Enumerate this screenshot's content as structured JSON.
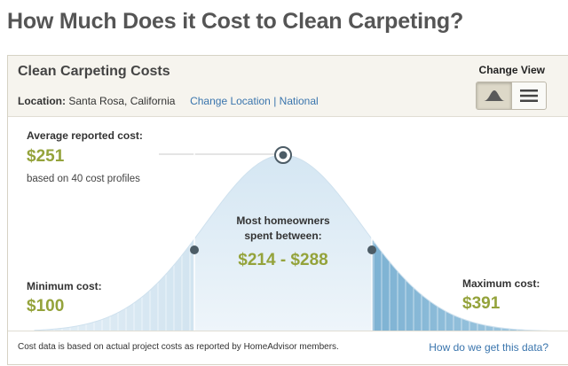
{
  "page": {
    "title": "How Much Does it Cost to Clean Carpeting?"
  },
  "card": {
    "title": "Clean Carpeting Costs",
    "location_label": "Location:",
    "location_value": "Santa Rosa, California",
    "change_location": "Change Location",
    "separator": "|",
    "national": "National",
    "change_view": "Change View",
    "view_modes": [
      {
        "name": "curve-view",
        "icon": "bell-curve-icon",
        "active": true
      },
      {
        "name": "list-view",
        "icon": "list-icon",
        "active": false
      }
    ]
  },
  "stats": {
    "average_label": "Average reported cost:",
    "average_value": "$251",
    "profiles_note": "based on 40 cost profiles",
    "most_label_1": "Most homeowners",
    "most_label_2": "spent between:",
    "range_value": "$214 - $288",
    "min_label": "Minimum cost:",
    "min_value": "$100",
    "max_label": "Maximum cost:",
    "max_value": "$391"
  },
  "footer": {
    "note": "Cost data is based on actual project costs as reported by HomeAdvisor members.",
    "link": "How do we get this data?"
  },
  "colors": {
    "accent_green": "#94a33b",
    "link_blue": "#3a75ad",
    "curve_light": "#d6e8f4",
    "curve_dark": "#7fb3d2",
    "marker": "#4c5c66"
  }
}
